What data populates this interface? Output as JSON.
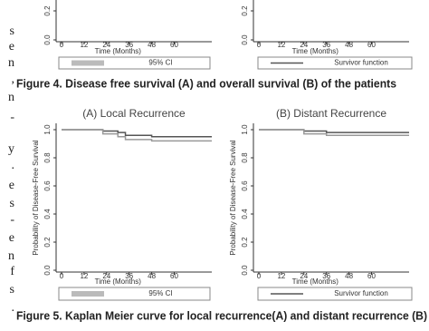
{
  "margin_text": [
    "s",
    "e",
    "n",
    ",",
    "n",
    "-",
    "y",
    ".",
    "e",
    "s",
    "-",
    "e",
    "n",
    "f",
    "s",
    "."
  ],
  "figure4": {
    "caption": "Figure 4. Disease free survival (A) and overall survival (B) of the patients",
    "panels": [
      {
        "x_label": "Time (Months)",
        "xlim": [
          0,
          80
        ],
        "ylim": [
          0,
          1
        ],
        "xticks": [
          0,
          12,
          24,
          36,
          48,
          60
        ],
        "yticks": [
          {
            "value": 0,
            "label": "0.0"
          },
          {
            "value": 0.2,
            "label": "0.2"
          }
        ],
        "legend": {
          "label": "95% CI",
          "kind": "ci"
        }
      },
      {
        "x_label": "Time (Months)",
        "xlim": [
          0,
          80
        ],
        "ylim": [
          0,
          1
        ],
        "xticks": [
          0,
          12,
          24,
          36,
          48,
          60
        ],
        "yticks": [
          {
            "value": 0,
            "label": "0.0"
          },
          {
            "value": 0.2,
            "label": "0.2"
          }
        ],
        "legend": {
          "label": "Survivor function",
          "kind": "line"
        }
      }
    ]
  },
  "figure5": {
    "caption": "Figure 5. Kaplan Meier curve for local recurrence(A) and distant recurrence (B)",
    "panels": [
      {
        "title": "(A) Local Recurrence",
        "y_label": "Probability of Disease-Free Survival",
        "x_label": "Time (Months)",
        "xlim": [
          0,
          80
        ],
        "ylim": [
          0,
          1
        ],
        "xticks": [
          0,
          12,
          24,
          36,
          48,
          60
        ],
        "yticks": [
          {
            "value": 0,
            "label": "0.0"
          },
          {
            "value": 0.2,
            "label": "0.2"
          },
          {
            "value": 0.4,
            "label": "0.4"
          },
          {
            "value": 0.6,
            "label": "0.6"
          },
          {
            "value": 0.8,
            "label": "0.8"
          },
          {
            "value": 1,
            "label": "1.0"
          }
        ],
        "legend": {
          "label": "95% CI",
          "kind": "ci"
        },
        "series": [
          {
            "color": "#555555",
            "x": [
              0,
              22,
              30,
              34,
              48,
              80
            ],
            "values": [
              1,
              0.99,
              0.98,
              0.96,
              0.95,
              0.95
            ]
          },
          {
            "color": "#999999",
            "x": [
              0,
              22,
              30,
              34,
              48,
              80
            ],
            "values": [
              1,
              0.97,
              0.95,
              0.93,
              0.92,
              0.92
            ]
          }
        ]
      },
      {
        "title": "(B) Distant Recurrence",
        "y_label": "Probability of Disease-Free Survival",
        "x_label": "Time (Months)",
        "xlim": [
          0,
          80
        ],
        "ylim": [
          0,
          1
        ],
        "xticks": [
          0,
          12,
          24,
          36,
          48,
          60
        ],
        "yticks": [
          {
            "value": 0,
            "label": "0.0"
          },
          {
            "value": 0.2,
            "label": "0.2"
          },
          {
            "value": 0.4,
            "label": "0.4"
          },
          {
            "value": 0.6,
            "label": "0.6"
          },
          {
            "value": 0.8,
            "label": "0.8"
          },
          {
            "value": 1,
            "label": "1.0"
          }
        ],
        "legend": {
          "label": "Survivor function",
          "kind": "line"
        },
        "series": [
          {
            "color": "#555555",
            "x": [
              0,
              24,
              36,
              80
            ],
            "values": [
              1,
              0.99,
              0.98,
              0.98
            ]
          },
          {
            "color": "#999999",
            "x": [
              0,
              24,
              36,
              80
            ],
            "values": [
              1,
              0.97,
              0.96,
              0.96
            ]
          }
        ]
      }
    ]
  }
}
